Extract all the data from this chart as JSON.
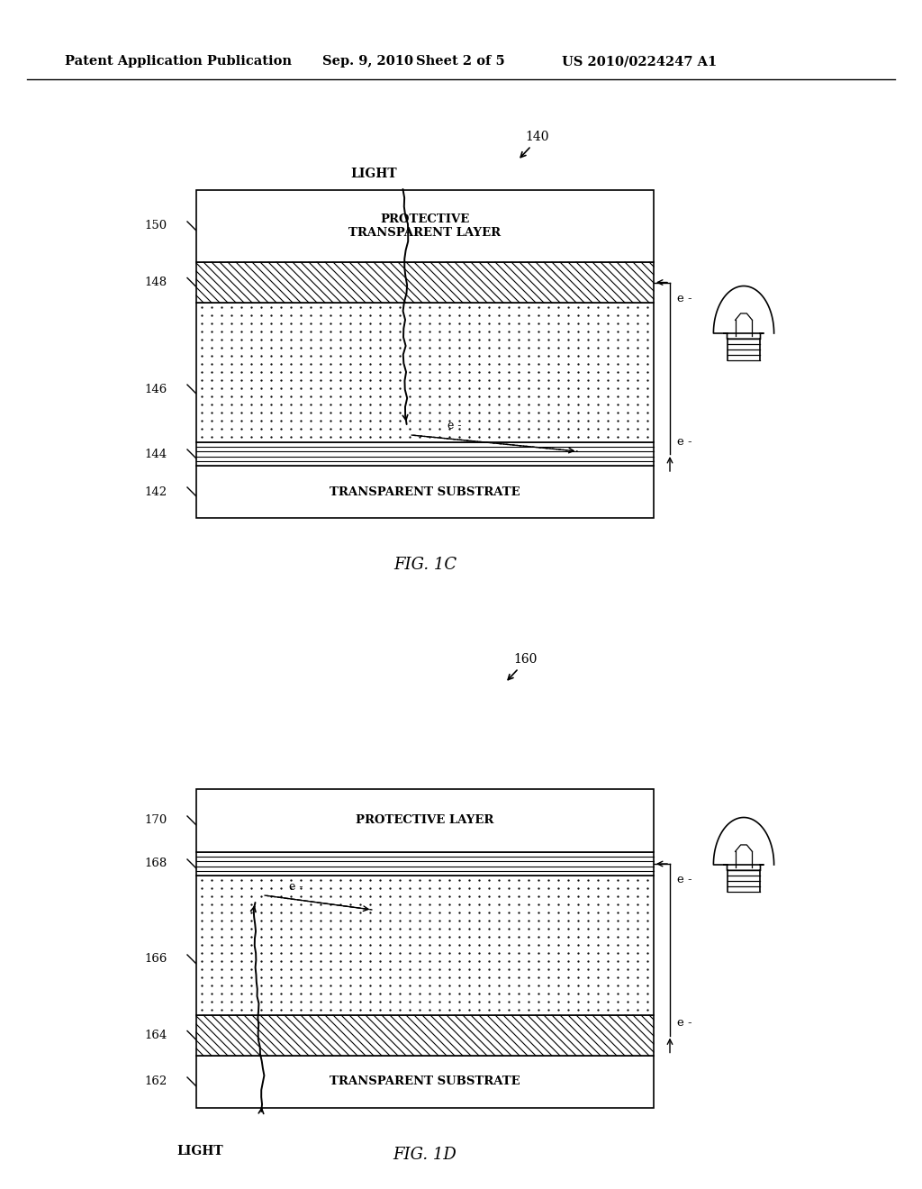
{
  "bg_color": "#ffffff",
  "header_text": "Patent Application Publication",
  "header_date": "Sep. 9, 2010",
  "header_sheet": "Sheet 2 of 5",
  "header_patent": "US 2010/0224247 A1",
  "fig1c_label": "FIG. 1C",
  "fig1d_label": "FIG. 1D",
  "fig1c_ref": "140",
  "fig1d_ref": "160",
  "fig1c_light": "LIGHT",
  "fig1d_light": "LIGHT",
  "e_minus": "e -"
}
